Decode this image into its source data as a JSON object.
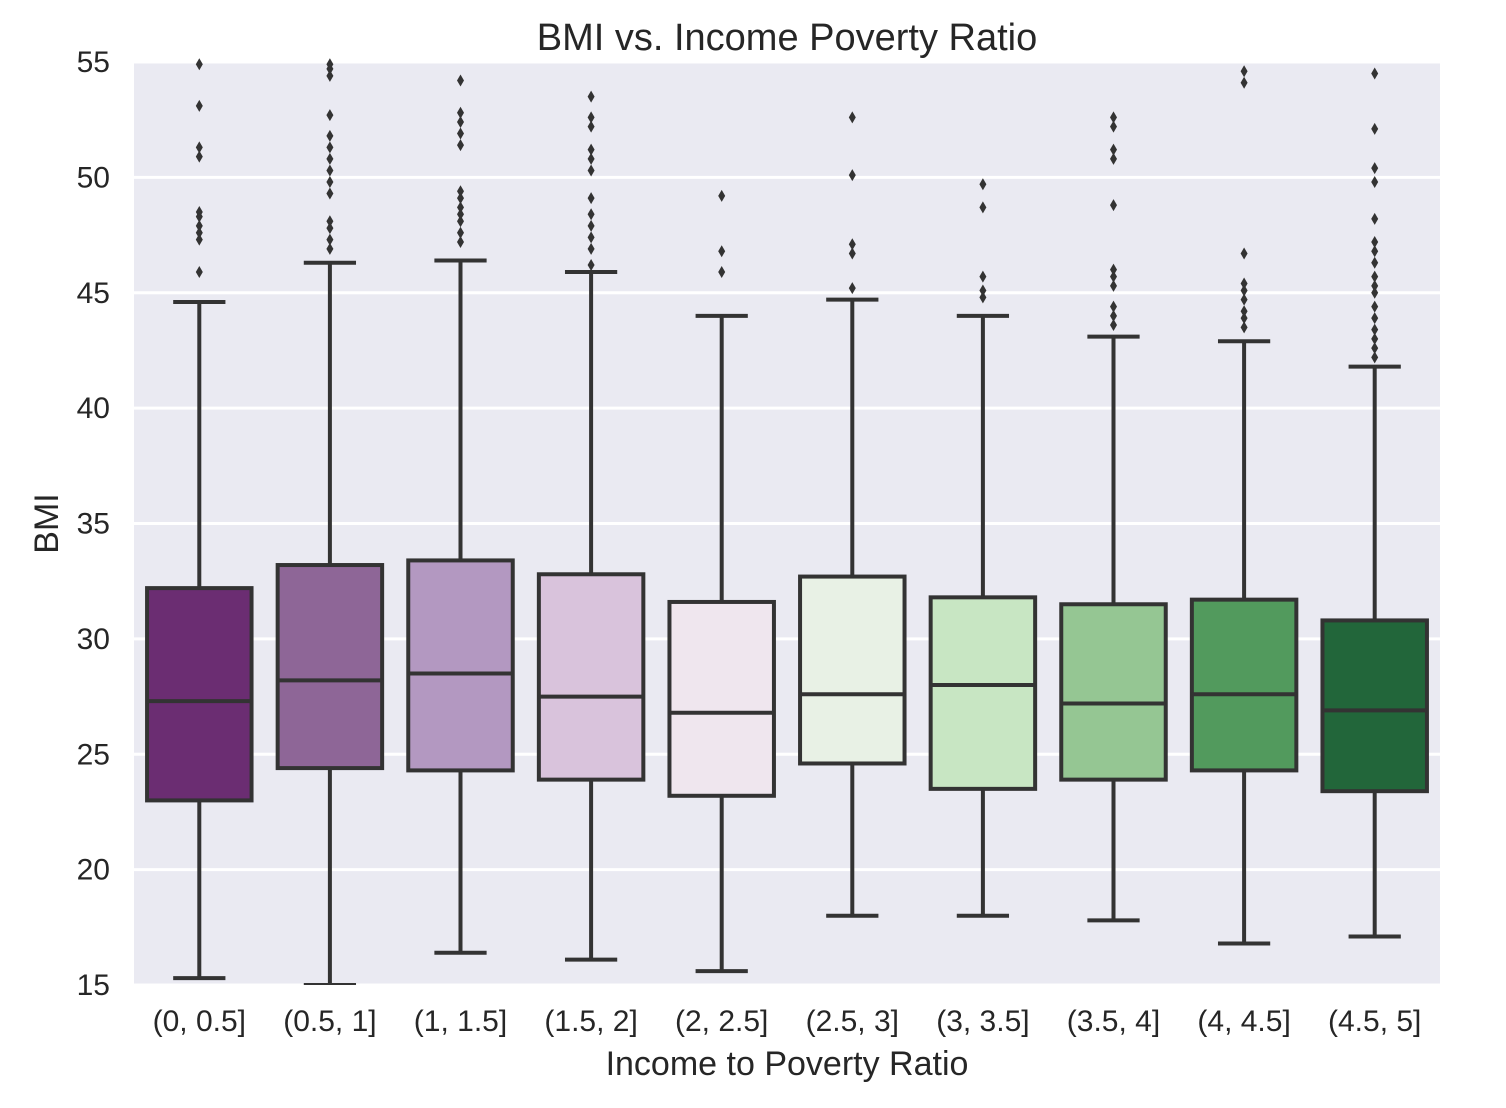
{
  "chart_data": {
    "type": "boxplot",
    "title": "BMI vs. Income Poverty Ratio",
    "xlabel": "Income to Poverty Ratio",
    "ylabel": "BMI",
    "ylim": [
      15,
      55
    ],
    "yticks": [
      15,
      20,
      25,
      30,
      35,
      40,
      45,
      50,
      55
    ],
    "ytick_labels": [
      "15",
      "20",
      "25",
      "30",
      "35",
      "40",
      "45",
      "50",
      "55"
    ],
    "grid": "horizontal",
    "background": "#eaeaf2",
    "categories": [
      "(0, 0.5]",
      "(0.5, 1]",
      "(1, 1.5]",
      "(1.5, 2]",
      "(2, 2.5]",
      "(2.5, 3]",
      "(3, 3.5]",
      "(3.5, 4]",
      "(4, 4.5]",
      "(4.5, 5]"
    ],
    "boxes": [
      {
        "whisker_low": 15.3,
        "q1": 23.0,
        "median": 27.3,
        "q3": 32.2,
        "whisker_high": 44.6,
        "color": "#6b2d72",
        "outliers": [
          45.9,
          47.3,
          47.6,
          47.9,
          48.3,
          48.5,
          50.9,
          51.3,
          53.1,
          54.9
        ]
      },
      {
        "whisker_low": 15.0,
        "q1": 24.4,
        "median": 28.2,
        "q3": 33.2,
        "whisker_high": 46.3,
        "color": "#8e6697",
        "outliers": [
          46.9,
          47.3,
          47.8,
          48.1,
          49.3,
          49.8,
          50.3,
          50.8,
          51.3,
          51.8,
          52.7,
          54.4,
          54.7,
          54.9
        ]
      },
      {
        "whisker_low": 16.4,
        "q1": 24.3,
        "median": 28.5,
        "q3": 33.4,
        "whisker_high": 46.4,
        "color": "#b398c1",
        "outliers": [
          47.2,
          47.6,
          48.1,
          48.4,
          48.7,
          49.1,
          49.4,
          51.4,
          51.9,
          52.4,
          52.8,
          54.2
        ]
      },
      {
        "whisker_low": 16.1,
        "q1": 23.9,
        "median": 27.5,
        "q3": 32.8,
        "whisker_high": 45.9,
        "color": "#d9c3dc",
        "outliers": [
          46.2,
          46.9,
          47.4,
          47.9,
          48.4,
          49.1,
          50.3,
          50.8,
          51.2,
          52.2,
          52.6,
          53.5
        ]
      },
      {
        "whisker_low": 15.6,
        "q1": 23.2,
        "median": 26.8,
        "q3": 31.6,
        "whisker_high": 44.0,
        "color": "#efe6ee",
        "outliers": [
          45.9,
          46.8,
          49.2
        ]
      },
      {
        "whisker_low": 18.0,
        "q1": 24.6,
        "median": 27.6,
        "q3": 32.7,
        "whisker_high": 44.7,
        "color": "#e8f1e5",
        "outliers": [
          45.2,
          46.7,
          47.1,
          50.1,
          52.6
        ]
      },
      {
        "whisker_low": 18.0,
        "q1": 23.5,
        "median": 28.0,
        "q3": 31.8,
        "whisker_high": 44.0,
        "color": "#c8e6c3",
        "outliers": [
          44.8,
          45.1,
          45.7,
          48.7,
          49.7
        ]
      },
      {
        "whisker_low": 17.8,
        "q1": 23.9,
        "median": 27.2,
        "q3": 31.5,
        "whisker_high": 43.1,
        "color": "#95c693",
        "outliers": [
          43.6,
          44.0,
          44.4,
          45.3,
          45.7,
          46.0,
          48.8,
          50.8,
          51.2,
          52.2,
          52.6
        ]
      },
      {
        "whisker_low": 16.8,
        "q1": 24.3,
        "median": 27.6,
        "q3": 31.7,
        "whisker_high": 42.9,
        "color": "#529a5d",
        "outliers": [
          43.5,
          43.9,
          44.2,
          44.7,
          45.1,
          45.4,
          46.7,
          54.1,
          54.6
        ]
      },
      {
        "whisker_low": 17.1,
        "q1": 23.4,
        "median": 26.9,
        "q3": 30.8,
        "whisker_high": 41.8,
        "color": "#22663a",
        "outliers": [
          42.2,
          42.6,
          43.0,
          43.4,
          43.9,
          44.4,
          45.0,
          45.3,
          45.7,
          46.3,
          46.8,
          47.2,
          48.2,
          49.8,
          50.4,
          52.1,
          54.5
        ]
      }
    ]
  }
}
